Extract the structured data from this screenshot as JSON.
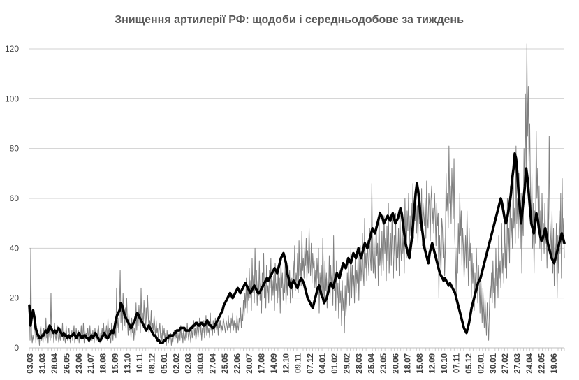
{
  "chart_data": {
    "type": "line",
    "title": "Знищення артилерії  РФ: щодоби і середньодобове за тиждень",
    "xlabel": "",
    "ylabel": "",
    "ylim": [
      0,
      120
    ],
    "yticks": [
      0,
      20,
      40,
      60,
      80,
      100,
      120
    ],
    "grid": "horizontal",
    "legend": "none",
    "x_tick_labels": [
      "03.03",
      "31.03",
      "28.04",
      "26.05",
      "23.06",
      "21.07",
      "18.08",
      "15.09",
      "13.10",
      "10.11",
      "08.12",
      "05.01",
      "02.02",
      "02.03",
      "30.03",
      "27.04",
      "25.05",
      "22.06",
      "20.07",
      "17.08",
      "14.09",
      "12.10",
      "09.11",
      "07.12",
      "04.01",
      "01.02",
      "29.02",
      "28.03",
      "25.04",
      "23.05",
      "20.06",
      "18.07",
      "15.08",
      "12.09",
      "10.10",
      "07.11",
      "05.12",
      "02.01",
      "30.01",
      "27.02",
      "27.03",
      "24.04",
      "22.05",
      "19.06"
    ],
    "colors": {
      "daily": "#808080",
      "weekly_avg": "#000000",
      "grid": "#d0d0d0"
    },
    "series": [
      {
        "name": "",
        "style": "thin gray line (daily)",
        "values": [
          17,
          3,
          40,
          6,
          2,
          5,
          3,
          8,
          13,
          2,
          6,
          4,
          3,
          5,
          1,
          7,
          9,
          3,
          6,
          2,
          8,
          5,
          3,
          12,
          4,
          7,
          2,
          9,
          5,
          3,
          22,
          4,
          8,
          6,
          2,
          10,
          5,
          3,
          7,
          9,
          4,
          2,
          6,
          3,
          8,
          5,
          10,
          3,
          7,
          4,
          2,
          9,
          5,
          3,
          6,
          8,
          4,
          2,
          5,
          7,
          3,
          6,
          9,
          2,
          4,
          8,
          5,
          3,
          7,
          2,
          6,
          4,
          9,
          3,
          5,
          10,
          2,
          7,
          4,
          6,
          3,
          8,
          5,
          2,
          9,
          4,
          6,
          3,
          7,
          5,
          2,
          8,
          4,
          6,
          3,
          7,
          9,
          4,
          2,
          6,
          5,
          8,
          3,
          10,
          4,
          7,
          6,
          9,
          3,
          12,
          5,
          8,
          4,
          2,
          10,
          6,
          3,
          9,
          5,
          7,
          4,
          24,
          8,
          12,
          6,
          15,
          31,
          10,
          18,
          7,
          22,
          12,
          9,
          16,
          8,
          20,
          11,
          5,
          14,
          7,
          9,
          4,
          12,
          6,
          10,
          3,
          8,
          5,
          18,
          7,
          13,
          9,
          17,
          11,
          6,
          24,
          10,
          14,
          8,
          19,
          12,
          7,
          16,
          9,
          21,
          13,
          6,
          11,
          8,
          15,
          5,
          10,
          7,
          13,
          9,
          4,
          11,
          6,
          8,
          3,
          7,
          10,
          4,
          6,
          2,
          9,
          5,
          8,
          3,
          6,
          1,
          7,
          4,
          2,
          5,
          3,
          6,
          1,
          4,
          2,
          5,
          7,
          3,
          6,
          4,
          8,
          2,
          5,
          7,
          3,
          9,
          4,
          6,
          2,
          8,
          5,
          3,
          7,
          4,
          10,
          6,
          3,
          8,
          5,
          2,
          9,
          4,
          7,
          11,
          5,
          8,
          3,
          6,
          10,
          4,
          7,
          12,
          5,
          9,
          3,
          8,
          6,
          11,
          4,
          7,
          13,
          5,
          10,
          6,
          8,
          4,
          14,
          7,
          9,
          5,
          11,
          8,
          6,
          12,
          9,
          7,
          10,
          5,
          13,
          8,
          11,
          6,
          9,
          7,
          12,
          10,
          8,
          6,
          11,
          9,
          7,
          13,
          8,
          10,
          6,
          12,
          9,
          14,
          7,
          11,
          8,
          10,
          6,
          13,
          9,
          7,
          12,
          10,
          16,
          8,
          14,
          11,
          19,
          13,
          22,
          16,
          28,
          14,
          25,
          19,
          32,
          20,
          27,
          15,
          36,
          22,
          29,
          18,
          40,
          24,
          31,
          17,
          27,
          21,
          35,
          19,
          26,
          14,
          30,
          23,
          38,
          20,
          28,
          16,
          33,
          22,
          25,
          18,
          31,
          24,
          36,
          19,
          27,
          21,
          29,
          15,
          34,
          23,
          26,
          18,
          32,
          20,
          28,
          14,
          35,
          24,
          30,
          19,
          26,
          22,
          37,
          17,
          29,
          21,
          33,
          25,
          31,
          18,
          24,
          28,
          20,
          35,
          27,
          41,
          23,
          30,
          26,
          38,
          22,
          43,
          29,
          34,
          25,
          47,
          31,
          36,
          28,
          40,
          33,
          44,
          27,
          39,
          30,
          48,
          35,
          29,
          42,
          26,
          38,
          32,
          35,
          24,
          31,
          22,
          36,
          28,
          40,
          14,
          30,
          25,
          33,
          20,
          44,
          27,
          18,
          35,
          23,
          30,
          16,
          28,
          22,
          37,
          19,
          33,
          25,
          30,
          17,
          45,
          23,
          29,
          15,
          35,
          20,
          26,
          12,
          31,
          18,
          23,
          9,
          27,
          15,
          20,
          6,
          25,
          13,
          18,
          30,
          22,
          35,
          17,
          28,
          40,
          20,
          33,
          24,
          29,
          18,
          37,
          22,
          31,
          26,
          38,
          19,
          35,
          41,
          27,
          33,
          46,
          30,
          25,
          52,
          32,
          38,
          27,
          43,
          35,
          29,
          48,
          36,
          31,
          66,
          39,
          30,
          45,
          34,
          28,
          50,
          37,
          42,
          25,
          55,
          33,
          40,
          29,
          47,
          36,
          31,
          53,
          38,
          44,
          27,
          49,
          35,
          58,
          30,
          41,
          46,
          33,
          52,
          39,
          28,
          45,
          37,
          54,
          31,
          43,
          36,
          48,
          29,
          56,
          40,
          35,
          51,
          38,
          44,
          30,
          60,
          42,
          36,
          55,
          47,
          62,
          40,
          53,
          45,
          58,
          48,
          66,
          44,
          59,
          51,
          63,
          46,
          57,
          42,
          61,
          50,
          55,
          47,
          64,
          41,
          58,
          53,
          49,
          60,
          44,
          67,
          52,
          48,
          62,
          57,
          43,
          59,
          65,
          50,
          56,
          46,
          62,
          53,
          41,
          58,
          49,
          54,
          20,
          45,
          38,
          30,
          52,
          48,
          36,
          44,
          29,
          40,
          70,
          55,
          62,
          48,
          81,
          58,
          65,
          50,
          72,
          60,
          52,
          76,
          45,
          35,
          22,
          40,
          30,
          50,
          38,
          62,
          45,
          55,
          33,
          48,
          41,
          28,
          36,
          45,
          32,
          55,
          40,
          25,
          48,
          35,
          42,
          20,
          38,
          26,
          34,
          15,
          30,
          22,
          40,
          28,
          18,
          33,
          25,
          14,
          30,
          20,
          10,
          24,
          16,
          8,
          20,
          12,
          5,
          18,
          10,
          3,
          15,
          25,
          20,
          30,
          18,
          35,
          22,
          28,
          16,
          40,
          25,
          32,
          20,
          45,
          28,
          35,
          24,
          50,
          30,
          38,
          26,
          55,
          32,
          42,
          28,
          60,
          38,
          48,
          34,
          65,
          44,
          52,
          40,
          72,
          48,
          56,
          42,
          81,
          50,
          60,
          44,
          70,
          52,
          40,
          62,
          30,
          55,
          45,
          80,
          60,
          102,
          70,
          122,
          85,
          105,
          75,
          90,
          62,
          50,
          70,
          40,
          58,
          30,
          55,
          42,
          87,
          60,
          72,
          48,
          65,
          40,
          55,
          35,
          62,
          45,
          50,
          38,
          58,
          42,
          48,
          32,
          60,
          40,
          85,
          52,
          45,
          38,
          55,
          30,
          48,
          25,
          42,
          35,
          50,
          20,
          45,
          30,
          55,
          38,
          62,
          28,
          68,
          42,
          52,
          36
        ]
      },
      {
        "name": "",
        "style": "thick black line (7-day average)",
        "values": [
          17,
          9,
          13,
          15,
          12,
          8,
          6,
          5,
          4,
          4,
          5,
          5,
          6,
          7,
          6,
          7,
          9,
          8,
          7,
          6,
          7,
          6,
          7,
          8,
          7,
          6,
          5,
          6,
          5,
          5,
          4,
          5,
          4,
          5,
          5,
          6,
          5,
          4,
          5,
          6,
          5,
          4,
          4,
          5,
          5,
          4,
          4,
          3,
          4,
          5,
          4,
          5,
          6,
          5,
          4,
          3,
          3,
          4,
          5,
          6,
          5,
          4,
          4,
          5,
          6,
          7,
          6,
          8,
          11,
          13,
          14,
          15,
          18,
          17,
          15,
          13,
          12,
          11,
          10,
          9,
          8,
          9,
          10,
          11,
          13,
          14,
          13,
          12,
          11,
          10,
          9,
          8,
          7,
          8,
          9,
          8,
          7,
          6,
          5,
          5,
          4,
          3,
          3,
          2,
          2,
          2,
          3,
          3,
          4,
          4,
          5,
          5,
          5,
          5,
          6,
          6,
          7,
          7,
          7,
          8,
          8,
          8,
          8,
          7,
          7,
          7,
          7,
          8,
          8,
          9,
          9,
          10,
          10,
          9,
          9,
          10,
          10,
          9,
          9,
          10,
          11,
          10,
          9,
          9,
          8,
          8,
          9,
          10,
          11,
          12,
          13,
          14,
          15,
          17,
          18,
          19,
          20,
          21,
          22,
          21,
          20,
          21,
          22,
          23,
          24,
          23,
          22,
          23,
          24,
          25,
          26,
          25,
          24,
          23,
          22,
          23,
          24,
          25,
          24,
          23,
          22,
          22,
          23,
          24,
          25,
          26,
          27,
          28,
          27,
          28,
          29,
          30,
          31,
          32,
          31,
          30,
          32,
          34,
          36,
          37,
          38,
          36,
          34,
          30,
          28,
          25,
          24,
          26,
          27,
          26,
          25,
          24,
          26,
          27,
          28,
          27,
          26,
          24,
          22,
          20,
          19,
          18,
          17,
          16,
          18,
          20,
          22,
          24,
          25,
          23,
          21,
          20,
          18,
          19,
          20,
          22,
          24,
          26,
          25,
          24,
          26,
          28,
          30,
          29,
          28,
          30,
          32,
          34,
          33,
          32,
          34,
          36,
          35,
          34,
          36,
          38,
          37,
          36,
          38,
          40,
          38,
          36,
          38,
          40,
          42,
          41,
          40,
          42,
          44,
          46,
          48,
          47,
          46,
          48,
          50,
          52,
          54,
          53,
          52,
          50,
          51,
          52,
          53,
          52,
          51,
          53,
          54,
          52,
          50,
          51,
          52,
          54,
          56,
          54,
          50,
          46,
          42,
          40,
          38,
          36,
          40,
          44,
          50,
          56,
          62,
          66,
          63,
          58,
          52,
          48,
          44,
          40,
          38,
          36,
          34,
          38,
          40,
          42,
          40,
          38,
          36,
          34,
          32,
          30,
          29,
          28,
          27,
          28,
          27,
          26,
          25,
          26,
          25,
          24,
          23,
          22,
          20,
          18,
          16,
          14,
          12,
          10,
          8,
          7,
          6,
          8,
          10,
          13,
          16,
          18,
          20,
          22,
          24,
          26,
          27,
          28,
          30,
          32,
          34,
          36,
          38,
          40,
          42,
          44,
          46,
          48,
          50,
          52,
          54,
          56,
          58,
          60,
          58,
          55,
          52,
          50,
          52,
          55,
          58,
          62,
          68,
          72,
          78,
          76,
          70,
          62,
          56,
          50,
          55,
          60,
          65,
          72,
          68,
          62,
          56,
          50,
          48,
          46,
          50,
          54,
          52,
          48,
          45,
          43,
          44,
          46,
          48,
          45,
          42,
          40,
          38,
          36,
          35,
          34,
          36,
          38,
          40,
          42,
          44,
          46,
          44,
          42
        ]
      }
    ]
  }
}
